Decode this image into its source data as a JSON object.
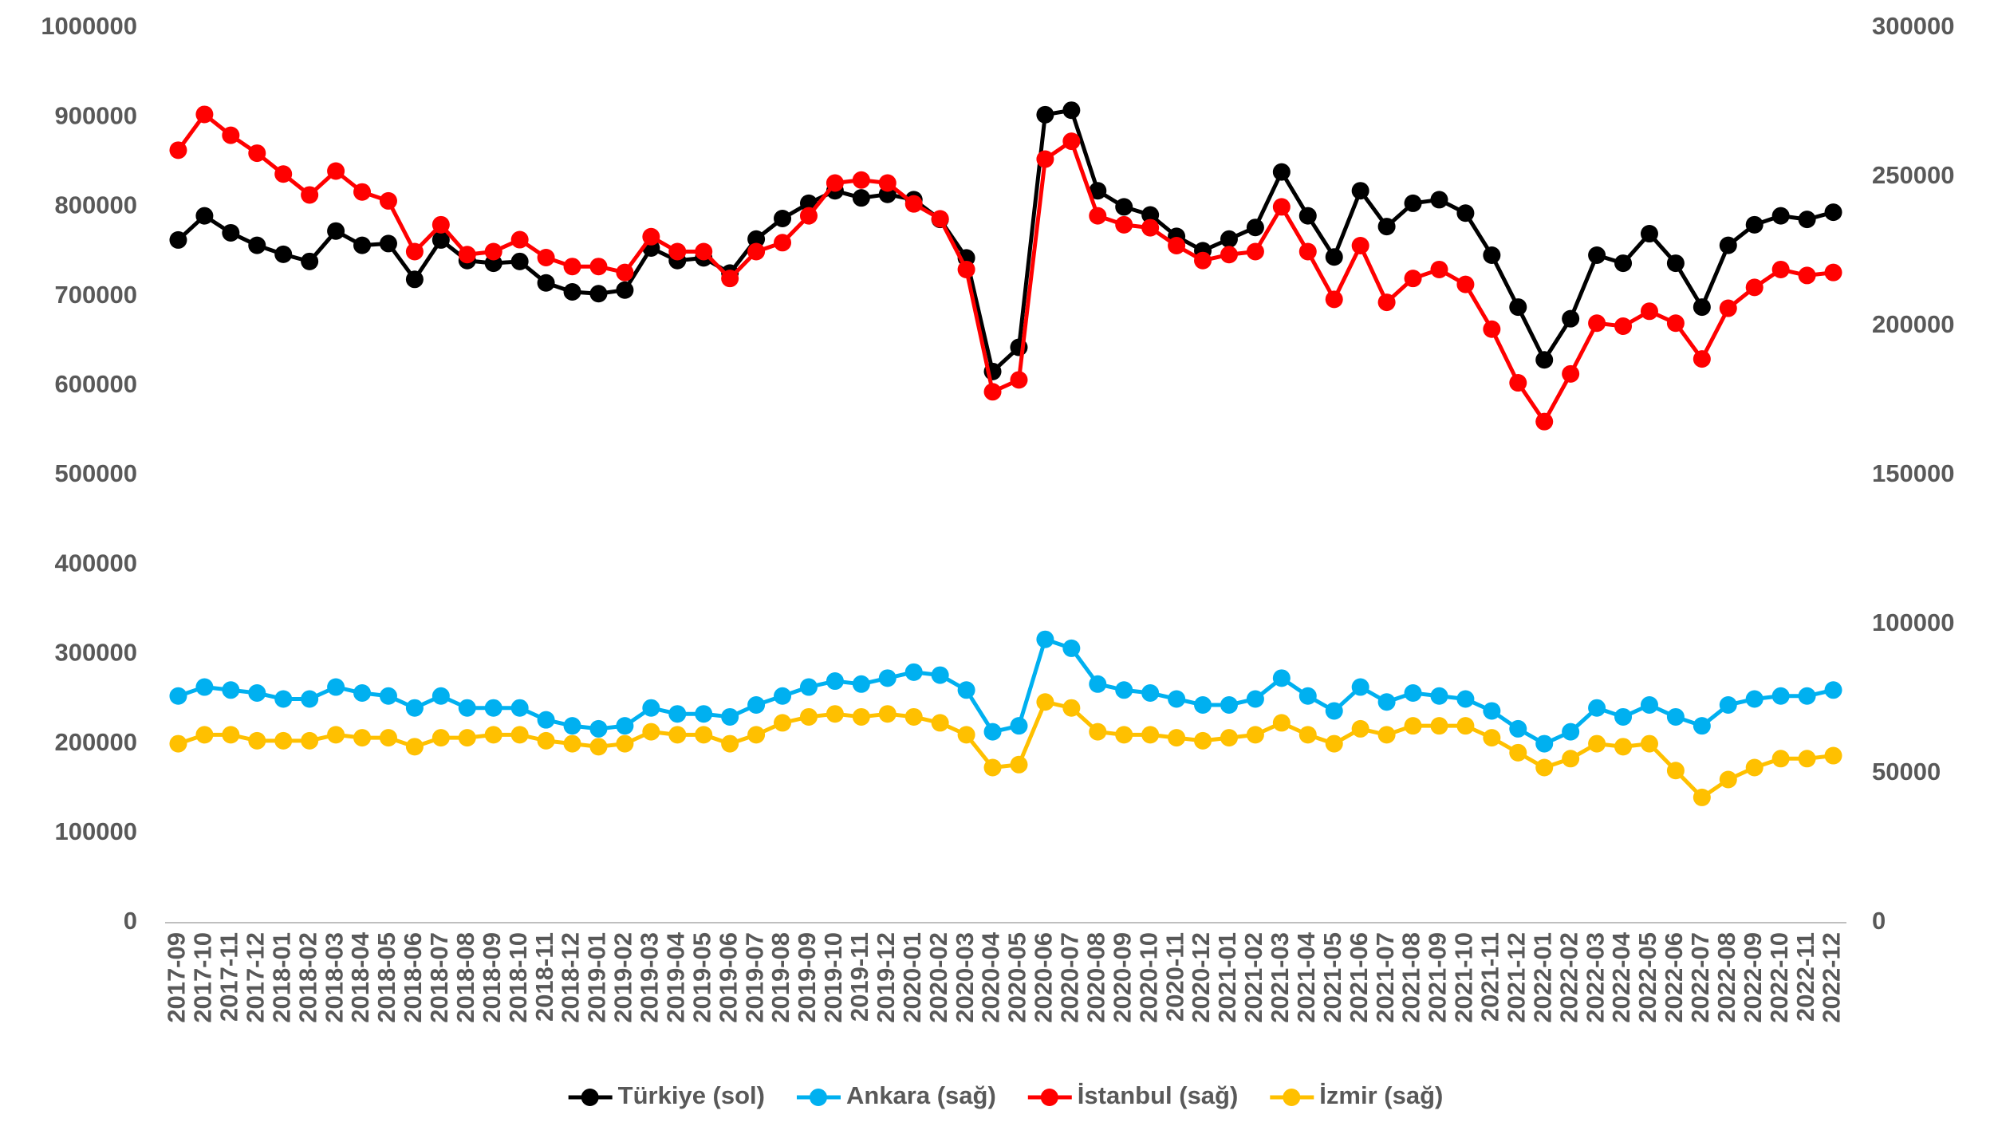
{
  "chart_data": {
    "type": "line",
    "categories": [
      "2017-09",
      "2017-10",
      "2017-11",
      "2017-12",
      "2018-01",
      "2018-02",
      "2018-03",
      "2018-04",
      "2018-05",
      "2018-06",
      "2018-07",
      "2018-08",
      "2018-09",
      "2018-10",
      "2018-11",
      "2018-12",
      "2019-01",
      "2019-02",
      "2019-03",
      "2019-04",
      "2019-05",
      "2019-06",
      "2019-07",
      "2019-08",
      "2019-09",
      "2019-10",
      "2019-11",
      "2019-12",
      "2020-01",
      "2020-02",
      "2020-03",
      "2020-04",
      "2020-05",
      "2020-06",
      "2020-07",
      "2020-08",
      "2020-09",
      "2020-10",
      "2020-11",
      "2020-12",
      "2021-01",
      "2021-02",
      "2021-03",
      "2021-04",
      "2021-05",
      "2021-06",
      "2021-07",
      "2021-08",
      "2021-09",
      "2021-10",
      "2021-11",
      "2021-12",
      "2022-01",
      "2022-02",
      "2022-03",
      "2022-04",
      "2022-05",
      "2022-06",
      "2022-07",
      "2022-08",
      "2022-09",
      "2022-10",
      "2022-11",
      "2022-12"
    ],
    "series": [
      {
        "name": "Türkiye (sol)",
        "color": "#000000",
        "axis": "y",
        "values": [
          763000,
          790000,
          771000,
          757000,
          747000,
          739000,
          773000,
          757000,
          759000,
          719000,
          763000,
          740000,
          737000,
          739000,
          715000,
          705000,
          703000,
          707000,
          754000,
          740000,
          743000,
          726000,
          764000,
          787000,
          804000,
          818000,
          810000,
          814000,
          808000,
          786000,
          743000,
          616000,
          643000,
          903000,
          908000,
          818000,
          800000,
          791000,
          767000,
          751000,
          764000,
          777000,
          839000,
          790000,
          744000,
          818000,
          778000,
          804000,
          808000,
          793000,
          746000,
          688000,
          629000,
          675000,
          746000,
          737000,
          770000,
          737000,
          688000,
          757000,
          780000,
          790000,
          786000,
          794000
        ]
      },
      {
        "name": "Ankara (sağ)",
        "color": "#00b0f0",
        "axis": "y2",
        "values": [
          76000,
          79000,
          78000,
          77000,
          75000,
          75000,
          79000,
          77000,
          76000,
          72000,
          76000,
          72000,
          72000,
          72000,
          68000,
          66000,
          65000,
          66000,
          72000,
          70000,
          70000,
          69000,
          73000,
          76000,
          79000,
          81000,
          80000,
          82000,
          84000,
          83000,
          78000,
          64000,
          66000,
          95000,
          92000,
          80000,
          78000,
          77000,
          75000,
          73000,
          73000,
          75000,
          82000,
          76000,
          71000,
          79000,
          74000,
          77000,
          76000,
          75000,
          71000,
          65000,
          60000,
          64000,
          72000,
          69000,
          73000,
          69000,
          66000,
          73000,
          75000,
          76000,
          76000,
          78000
        ]
      },
      {
        "name": "İstanbul (sağ)",
        "color": "#ff0000",
        "axis": "y2",
        "values": [
          259000,
          271000,
          264000,
          258000,
          251000,
          244000,
          252000,
          245000,
          242000,
          225000,
          234000,
          224000,
          225000,
          229000,
          223000,
          220000,
          220000,
          218000,
          230000,
          225000,
          225000,
          216000,
          225000,
          228000,
          237000,
          248000,
          249000,
          248000,
          241000,
          236000,
          219000,
          178000,
          182000,
          256000,
          262000,
          237000,
          234000,
          233000,
          227000,
          222000,
          224000,
          225000,
          240000,
          225000,
          209000,
          227000,
          208000,
          216000,
          219000,
          214000,
          199000,
          181000,
          168000,
          184000,
          201000,
          200000,
          205000,
          201000,
          189000,
          206000,
          213000,
          219000,
          217000,
          218000
        ]
      },
      {
        "name": "İzmir (sağ)",
        "color": "#ffc000",
        "axis": "y2",
        "values": [
          60000,
          63000,
          63000,
          61000,
          61000,
          61000,
          63000,
          62000,
          62000,
          59000,
          62000,
          62000,
          63000,
          63000,
          61000,
          60000,
          59000,
          60000,
          64000,
          63000,
          63000,
          60000,
          63000,
          67000,
          69000,
          70000,
          69000,
          70000,
          69000,
          67000,
          63000,
          52000,
          53000,
          74000,
          72000,
          64000,
          63000,
          63000,
          62000,
          61000,
          62000,
          63000,
          67000,
          63000,
          60000,
          65000,
          63000,
          66000,
          66000,
          66000,
          62000,
          57000,
          52000,
          55000,
          60000,
          59000,
          60000,
          51000,
          42000,
          48000,
          52000,
          55000,
          55000,
          56000
        ]
      }
    ],
    "ylim": [
      0,
      1000000
    ],
    "yticks": [
      0,
      100000,
      200000,
      300000,
      400000,
      500000,
      600000,
      700000,
      800000,
      900000,
      1000000
    ],
    "y2lim": [
      0,
      300000
    ],
    "y2ticks": [
      0,
      50000,
      100000,
      150000,
      200000,
      250000,
      300000
    ],
    "grid": false,
    "legend": "bottom"
  }
}
